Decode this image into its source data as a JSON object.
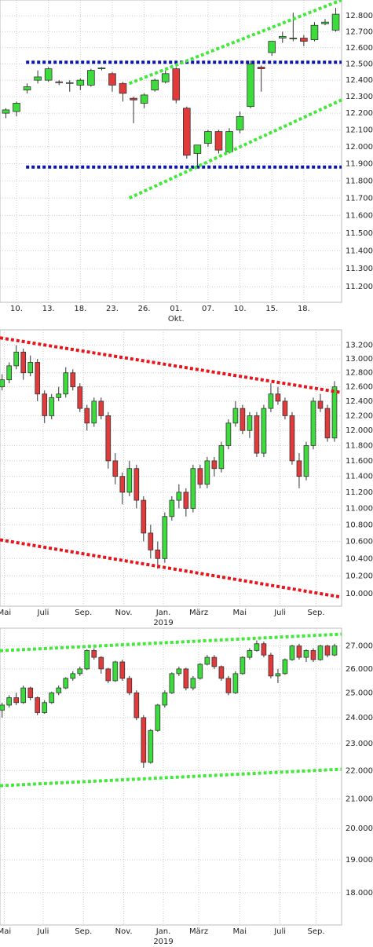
{
  "chart_data": [
    {
      "type": "candlestick",
      "log_scale": true,
      "grid": true,
      "up_color": "#3ddc3d",
      "down_color": "#e03a3a",
      "ylim": [
        11114,
        12900
      ],
      "yticks": [
        {
          "value": 12800,
          "label": "12.800"
        },
        {
          "value": 12700,
          "label": "12.700"
        },
        {
          "value": 12600,
          "label": "12.600"
        },
        {
          "value": 12500,
          "label": "12.500"
        },
        {
          "value": 12400,
          "label": "12.400"
        },
        {
          "value": 12300,
          "label": "12.300"
        },
        {
          "value": 12200,
          "label": "12.200"
        },
        {
          "value": 12100,
          "label": "12.100"
        },
        {
          "value": 12000,
          "label": "12.000"
        },
        {
          "value": 11900,
          "label": "11.900"
        },
        {
          "value": 11800,
          "label": "11.800"
        },
        {
          "value": 11700,
          "label": "11.700"
        },
        {
          "value": 11600,
          "label": "11.600"
        },
        {
          "value": 11500,
          "label": "11.500"
        },
        {
          "value": 11400,
          "label": "11.400"
        },
        {
          "value": 11300,
          "label": "11.300"
        },
        {
          "value": 11200,
          "label": "11.200"
        }
      ],
      "xlim": [
        -0.55,
        31.55
      ],
      "xticks": [
        {
          "value": 1,
          "label": "10."
        },
        {
          "value": 4,
          "label": "13."
        },
        {
          "value": 7,
          "label": "18."
        },
        {
          "value": 10,
          "label": "23."
        },
        {
          "value": 13,
          "label": "26."
        },
        {
          "value": 16,
          "label": "01."
        },
        {
          "value": 19,
          "label": "07."
        },
        {
          "value": 22,
          "label": "10."
        },
        {
          "value": 25,
          "label": "15."
        },
        {
          "value": 28,
          "label": "18."
        }
      ],
      "sublabels": [
        {
          "value": 16,
          "label": "Okt."
        }
      ],
      "candles": [
        [
          12200,
          12230,
          12170,
          12220
        ],
        [
          12210,
          12270,
          12180,
          12260
        ],
        [
          12340,
          12380,
          12320,
          12360
        ],
        [
          12400,
          12460,
          12380,
          12420
        ],
        [
          12400,
          12480,
          12390,
          12470
        ],
        [
          12390,
          12400,
          12370,
          12385
        ],
        [
          12380,
          12400,
          12330,
          12385
        ],
        [
          12370,
          12410,
          12340,
          12400
        ],
        [
          12370,
          12470,
          12360,
          12460
        ],
        [
          12470,
          12480,
          12460,
          12475
        ],
        [
          12440,
          12450,
          12330,
          12370
        ],
        [
          12380,
          12390,
          12270,
          12320
        ],
        [
          12290,
          12300,
          12140,
          12280
        ],
        [
          12260,
          12320,
          12230,
          12310
        ],
        [
          12340,
          12410,
          12330,
          12400
        ],
        [
          12390,
          12460,
          12380,
          12440
        ],
        [
          12470,
          12480,
          12260,
          12280
        ],
        [
          12230,
          12240,
          11930,
          11950
        ],
        [
          11960,
          12010,
          11880,
          12010
        ],
        [
          12020,
          12100,
          12000,
          12090
        ],
        [
          12090,
          12100,
          11960,
          11980
        ],
        [
          11970,
          12110,
          11960,
          12090
        ],
        [
          12100,
          12210,
          12080,
          12180
        ],
        [
          12240,
          12520,
          12230,
          12500
        ],
        [
          12480,
          12490,
          12330,
          12470
        ],
        [
          12570,
          12640,
          12550,
          12640
        ],
        [
          12660,
          12700,
          12630,
          12670
        ],
        [
          12660,
          12820,
          12640,
          12660
        ],
        [
          12660,
          12680,
          12610,
          12640
        ],
        [
          12650,
          12760,
          12640,
          12740
        ],
        [
          12750,
          12780,
          12740,
          12760
        ],
        [
          12710,
          12850,
          12700,
          12810
        ]
      ],
      "lines": [
        {
          "color": "#0a14b4",
          "points": [
            [
              1.9,
              12510
            ],
            [
              31.55,
              12510
            ]
          ]
        },
        {
          "color": "#0a14b4",
          "points": [
            [
              1.9,
              11880
            ],
            [
              31.55,
              11880
            ]
          ]
        },
        {
          "color": "#44e83c",
          "points": [
            [
              11.6,
              12380
            ],
            [
              31.55,
              12900
            ]
          ]
        },
        {
          "color": "#44e83c",
          "points": [
            [
              11.6,
              11700
            ],
            [
              31.55,
              12280
            ]
          ]
        }
      ]
    },
    {
      "type": "candlestick",
      "log_scale": true,
      "grid": true,
      "up_color": "#3ddc3d",
      "down_color": "#e03a3a",
      "ylim": [
        9860,
        13430
      ],
      "yticks": [
        {
          "value": 13200,
          "label": "13.200"
        },
        {
          "value": 13000,
          "label": "13.000"
        },
        {
          "value": 12800,
          "label": "12.800"
        },
        {
          "value": 12600,
          "label": "12.600"
        },
        {
          "value": 12400,
          "label": "12.400"
        },
        {
          "value": 12200,
          "label": "12.200"
        },
        {
          "value": 12000,
          "label": "12.000"
        },
        {
          "value": 11800,
          "label": "11.800"
        },
        {
          "value": 11600,
          "label": "11.600"
        },
        {
          "value": 11400,
          "label": "11.400"
        },
        {
          "value": 11200,
          "label": "11.200"
        },
        {
          "value": 11000,
          "label": "11.000"
        },
        {
          "value": 10800,
          "label": "10.800"
        },
        {
          "value": 10600,
          "label": "10.600"
        },
        {
          "value": 10400,
          "label": "10.400"
        },
        {
          "value": 10200,
          "label": "10.200"
        },
        {
          "value": 10000,
          "label": "10.000"
        }
      ],
      "xlim": [
        -0.3,
        48
      ],
      "xticks": [
        {
          "value": 0.3,
          "label": "Mai"
        },
        {
          "value": 5.8,
          "label": "Juli"
        },
        {
          "value": 11.5,
          "label": "Sep."
        },
        {
          "value": 17.2,
          "label": "Nov."
        },
        {
          "value": 22.8,
          "label": "Jan."
        },
        {
          "value": 27.8,
          "label": "März"
        },
        {
          "value": 33.6,
          "label": "Mai"
        },
        {
          "value": 39.3,
          "label": "Juli"
        },
        {
          "value": 44.4,
          "label": "Sep."
        }
      ],
      "sublabels": [
        {
          "value": 22.8,
          "label": "2019"
        }
      ],
      "candles": [
        [
          12600,
          12780,
          12550,
          12700
        ],
        [
          12700,
          12950,
          12650,
          12900
        ],
        [
          12900,
          13200,
          12850,
          13100
        ],
        [
          13100,
          13150,
          12700,
          12800
        ],
        [
          12800,
          13050,
          12750,
          12950
        ],
        [
          12950,
          13000,
          12400,
          12500
        ],
        [
          12500,
          12550,
          12100,
          12200
        ],
        [
          12200,
          12500,
          12150,
          12450
        ],
        [
          12450,
          12600,
          12400,
          12500
        ],
        [
          12500,
          12880,
          12450,
          12800
        ],
        [
          12800,
          12850,
          12550,
          12600
        ],
        [
          12600,
          12650,
          12250,
          12300
        ],
        [
          12300,
          12350,
          12000,
          12100
        ],
        [
          12100,
          12450,
          12050,
          12400
        ],
        [
          12400,
          12450,
          12150,
          12200
        ],
        [
          12200,
          12250,
          11500,
          11600
        ],
        [
          11600,
          11700,
          11300,
          11400
        ],
        [
          11400,
          11450,
          11050,
          11200
        ],
        [
          11200,
          11600,
          11150,
          11500
        ],
        [
          11500,
          11550,
          11000,
          11100
        ],
        [
          11100,
          11150,
          10600,
          10700
        ],
        [
          10700,
          10800,
          10400,
          10500
        ],
        [
          10500,
          10600,
          10280,
          10400
        ],
        [
          10400,
          10950,
          10350,
          10900
        ],
        [
          10900,
          11150,
          10850,
          11100
        ],
        [
          11100,
          11300,
          11000,
          11200
        ],
        [
          11200,
          11250,
          10900,
          11000
        ],
        [
          11000,
          11550,
          10950,
          11500
        ],
        [
          11500,
          11550,
          11250,
          11300
        ],
        [
          11300,
          11650,
          11250,
          11600
        ],
        [
          11600,
          11650,
          11400,
          11500
        ],
        [
          11500,
          11850,
          11450,
          11800
        ],
        [
          11800,
          12150,
          11750,
          12100
        ],
        [
          12100,
          12400,
          12050,
          12300
        ],
        [
          12300,
          12350,
          11950,
          12000
        ],
        [
          12000,
          12250,
          11900,
          12200
        ],
        [
          12200,
          12250,
          11650,
          11700
        ],
        [
          11700,
          12350,
          11650,
          12300
        ],
        [
          12300,
          12650,
          12250,
          12500
        ],
        [
          12500,
          12600,
          12350,
          12400
        ],
        [
          12400,
          12450,
          12150,
          12200
        ],
        [
          12200,
          12250,
          11550,
          11600
        ],
        [
          11600,
          11700,
          11250,
          11400
        ],
        [
          11400,
          11850,
          11350,
          11800
        ],
        [
          11800,
          12450,
          11750,
          12400
        ],
        [
          12400,
          12500,
          12250,
          12300
        ],
        [
          12300,
          12350,
          11850,
          11900
        ],
        [
          11900,
          12680,
          11850,
          12600
        ]
      ],
      "lines": [
        {
          "color": "#e8141c",
          "points": [
            [
              -0.3,
              13310
            ],
            [
              48,
              12520
            ]
          ]
        },
        {
          "color": "#e8141c",
          "points": [
            [
              -0.3,
              10620
            ],
            [
              48,
              9960
            ]
          ]
        }
      ]
    },
    {
      "type": "candlestick",
      "log_scale": true,
      "grid": true,
      "up_color": "#3ddc3d",
      "down_color": "#e03a3a",
      "ylim": [
        17070,
        27800
      ],
      "yticks": [
        {
          "value": 27000,
          "label": "27.000"
        },
        {
          "value": 26000,
          "label": "26.000"
        },
        {
          "value": 25000,
          "label": "25.000"
        },
        {
          "value": 24000,
          "label": "24.000"
        },
        {
          "value": 23000,
          "label": "23.000"
        },
        {
          "value": 22000,
          "label": "22.000"
        },
        {
          "value": 21000,
          "label": "21.000"
        },
        {
          "value": 20000,
          "label": "20.000"
        },
        {
          "value": 19000,
          "label": "19.000"
        },
        {
          "value": 18000,
          "label": "18.000"
        }
      ],
      "xlim": [
        -0.3,
        48
      ],
      "xticks": [
        {
          "value": 0.3,
          "label": "Mai"
        },
        {
          "value": 5.8,
          "label": "Juli"
        },
        {
          "value": 11.5,
          "label": "Sep."
        },
        {
          "value": 17.2,
          "label": "Nov."
        },
        {
          "value": 22.8,
          "label": "Jan."
        },
        {
          "value": 27.8,
          "label": "März"
        },
        {
          "value": 33.6,
          "label": "Mai"
        },
        {
          "value": 39.3,
          "label": "Juli"
        },
        {
          "value": 44.4,
          "label": "Sep."
        }
      ],
      "sublabels": [
        {
          "value": 22.8,
          "label": "2019"
        }
      ],
      "candles": [
        [
          24300,
          24600,
          24000,
          24500
        ],
        [
          24500,
          24900,
          24400,
          24800
        ],
        [
          24800,
          25000,
          24500,
          24600
        ],
        [
          24600,
          25300,
          24550,
          25200
        ],
        [
          25200,
          25250,
          24700,
          24800
        ],
        [
          24800,
          24850,
          24100,
          24200
        ],
        [
          24200,
          24700,
          24150,
          24600
        ],
        [
          24600,
          25050,
          24550,
          25000
        ],
        [
          25000,
          25300,
          24900,
          25200
        ],
        [
          25200,
          25650,
          25150,
          25600
        ],
        [
          25600,
          25900,
          25500,
          25800
        ],
        [
          25800,
          26100,
          25700,
          26000
        ],
        [
          26000,
          26850,
          25950,
          26800
        ],
        [
          26800,
          26900,
          26400,
          26500
        ],
        [
          26500,
          26550,
          25800,
          26000
        ],
        [
          26000,
          26050,
          25400,
          25500
        ],
        [
          25500,
          26350,
          25450,
          26300
        ],
        [
          26300,
          26400,
          25500,
          25600
        ],
        [
          25600,
          25700,
          24900,
          25000
        ],
        [
          25000,
          25100,
          23900,
          24000
        ],
        [
          24000,
          24100,
          22100,
          22300
        ],
        [
          22300,
          23550,
          22250,
          23500
        ],
        [
          23500,
          24550,
          23450,
          24500
        ],
        [
          24500,
          25100,
          24400,
          25000
        ],
        [
          25000,
          25850,
          24950,
          25800
        ],
        [
          25800,
          26100,
          25700,
          26000
        ],
        [
          26000,
          26050,
          25100,
          25200
        ],
        [
          25200,
          25700,
          25100,
          25600
        ],
        [
          25600,
          26250,
          25550,
          26200
        ],
        [
          26200,
          26600,
          26150,
          26500
        ],
        [
          26500,
          26600,
          26000,
          26100
        ],
        [
          26100,
          26150,
          25500,
          25600
        ],
        [
          25600,
          25700,
          24900,
          25000
        ],
        [
          25000,
          25900,
          24950,
          25800
        ],
        [
          25800,
          26550,
          25750,
          26500
        ],
        [
          26500,
          26900,
          26400,
          26800
        ],
        [
          26800,
          27250,
          26750,
          27100
        ],
        [
          27100,
          27200,
          26500,
          26600
        ],
        [
          26600,
          26700,
          25600,
          25700
        ],
        [
          25700,
          26000,
          25400,
          25800
        ],
        [
          25800,
          26450,
          25750,
          26400
        ],
        [
          26400,
          27050,
          26350,
          27000
        ],
        [
          27000,
          27100,
          26400,
          26500
        ],
        [
          26500,
          26850,
          26300,
          26800
        ],
        [
          26800,
          26900,
          26300,
          26400
        ],
        [
          26400,
          27050,
          26350,
          27000
        ],
        [
          27000,
          27050,
          26500,
          26600
        ],
        [
          26600,
          27100,
          26550,
          27000
        ]
      ],
      "lines": [
        {
          "color": "#44e83c",
          "points": [
            [
              -0.3,
              26790
            ],
            [
              48,
              27530
            ]
          ]
        },
        {
          "color": "#44e83c",
          "points": [
            [
              -0.3,
              21460
            ],
            [
              48,
              22050
            ]
          ]
        }
      ]
    }
  ]
}
